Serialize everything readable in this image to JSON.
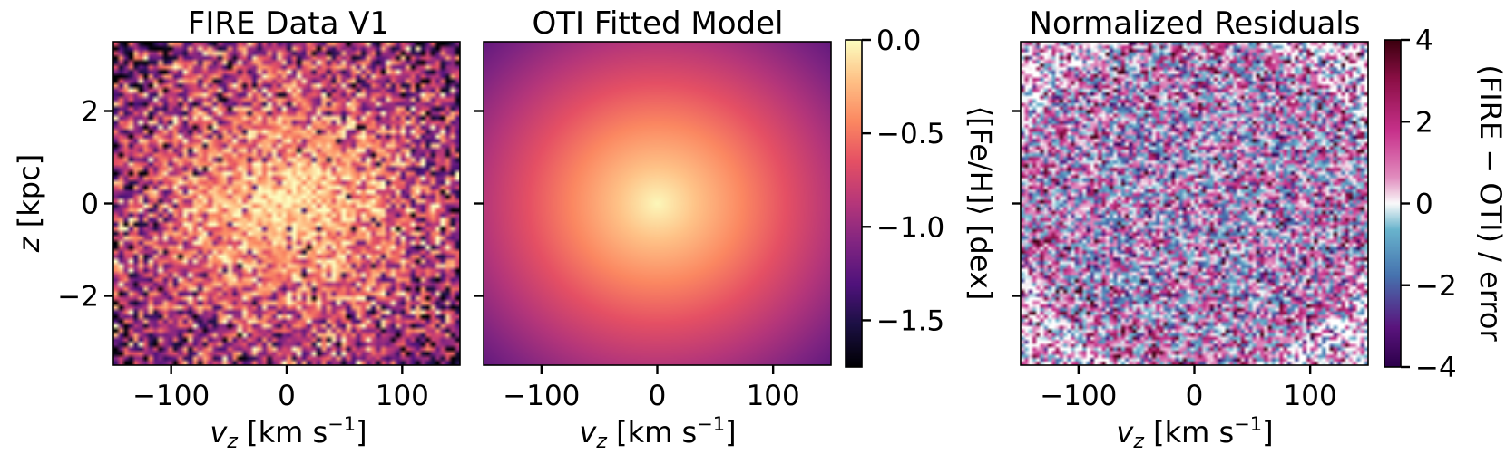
{
  "chart_data": [
    {
      "type": "heatmap",
      "title": "FIRE Data V1",
      "xlabel_parts": [
        "v",
        "z",
        " [km s",
        "−1",
        "]"
      ],
      "ylabel_parts": [
        "z",
        " [kpc]"
      ],
      "xlim": [
        -150,
        150
      ],
      "ylim": [
        -3.5,
        3.5
      ],
      "xticks": [
        -100,
        0,
        100
      ],
      "xtick_labels": [
        "−100",
        "0",
        "100"
      ],
      "yticks": [
        2,
        0,
        -2
      ],
      "ytick_labels": [
        "2",
        "0",
        "−2"
      ],
      "grid": 70,
      "colormap": "magma",
      "value_range": [
        -1.75,
        0.0
      ],
      "model": {
        "center_feh": -0.02,
        "gradient_per_unit_radius": -0.85,
        "noise_dex": 0.28
      }
    },
    {
      "type": "heatmap",
      "title": "OTI Fitted Model",
      "xlabel_parts": [
        "v",
        "z",
        " [km s",
        "−1",
        "]"
      ],
      "xlim": [
        -150,
        150
      ],
      "ylim": [
        -3.5,
        3.5
      ],
      "xticks": [
        -100,
        0,
        100
      ],
      "xtick_labels": [
        "−100",
        "0",
        "100"
      ],
      "yticks": [
        2,
        0,
        -2
      ],
      "colormap": "magma",
      "value_range": [
        -1.75,
        0.0
      ],
      "model": {
        "center_feh": -0.02,
        "gradient_per_unit_radius": -0.85
      },
      "colorbar": {
        "label": "⟨[Fe/H]⟩ [dex]",
        "ticks": [
          0.0,
          -0.5,
          -1.0,
          -1.5
        ],
        "tick_labels": [
          "0.0",
          "−0.5",
          "−1.0",
          "−1.5"
        ],
        "range": [
          -1.75,
          0.0
        ]
      }
    },
    {
      "type": "heatmap",
      "title": "Normalized Residuals",
      "xlabel_parts": [
        "v",
        "z",
        " [km s",
        "−1",
        "]"
      ],
      "xlim": [
        -150,
        150
      ],
      "ylim": [
        -3.5,
        3.5
      ],
      "xticks": [
        -100,
        0,
        100
      ],
      "xtick_labels": [
        "−100",
        "0",
        "100"
      ],
      "yticks": [
        2,
        0,
        -2
      ],
      "grid": 90,
      "colormap": "bwr-diverging",
      "value_range": [
        -4,
        4
      ],
      "colorbar": {
        "label": "(FIRE − OTI) / error",
        "ticks": [
          4,
          2,
          0,
          -2,
          -4
        ],
        "tick_labels": [
          "4",
          "2",
          "0",
          "−2",
          "−4"
        ],
        "range": [
          -4,
          4
        ]
      }
    }
  ]
}
